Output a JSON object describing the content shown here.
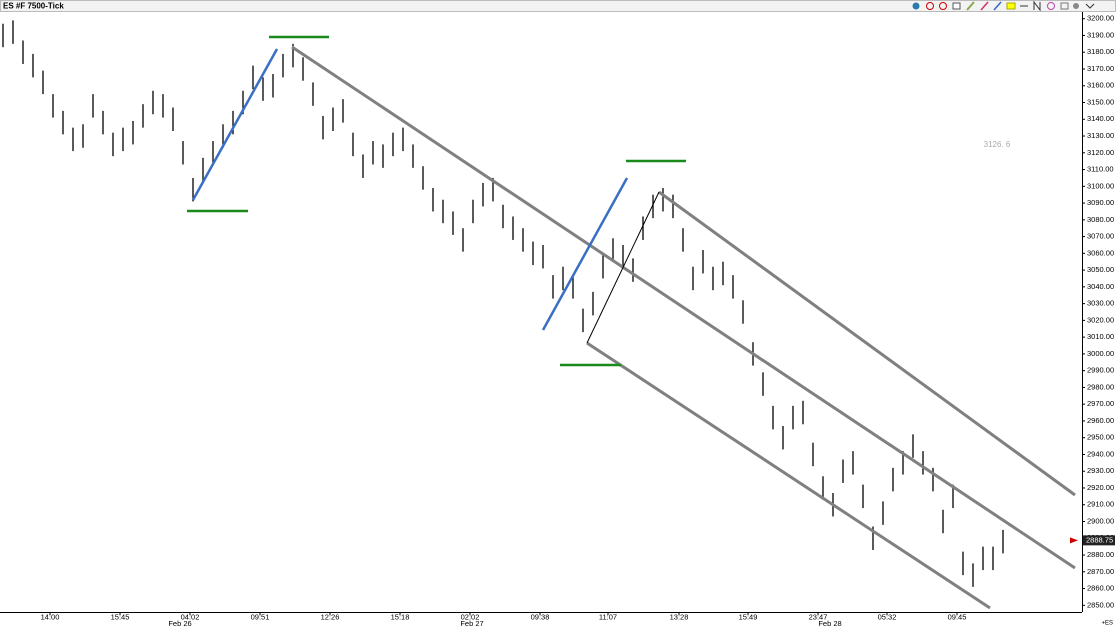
{
  "chart_data": {
    "type": "ohlc",
    "title": "ES #F 7500-Tick",
    "color": "#000000",
    "x": [
      3,
      13,
      23,
      33,
      43,
      53,
      63,
      73,
      83,
      93,
      103,
      113,
      123,
      133,
      143,
      153,
      163,
      173,
      183,
      193,
      203,
      213,
      223,
      233,
      243,
      253,
      263,
      273,
      283,
      293,
      303,
      313,
      323,
      333,
      343,
      353,
      363,
      373,
      383,
      393,
      403,
      413,
      423,
      433,
      443,
      453,
      463,
      473,
      483,
      493,
      503,
      513,
      523,
      533,
      543,
      553,
      563,
      573,
      583,
      593,
      603,
      613,
      623,
      633,
      643,
      653,
      663,
      673,
      683,
      693,
      703,
      713,
      723,
      733,
      743,
      753,
      763,
      773,
      783,
      793,
      803,
      813,
      823,
      833,
      843,
      853,
      863,
      873,
      883,
      893,
      903,
      913,
      923,
      933,
      943,
      953,
      963,
      973,
      983,
      993,
      1003
    ],
    "high": [
      3197,
      3199,
      3187,
      3179,
      3169,
      3155,
      3145,
      3135,
      3137,
      3155,
      3145,
      3132,
      3135,
      3139,
      3149,
      3157,
      3155,
      3147,
      3127,
      3105,
      3117,
      3127,
      3137,
      3145,
      3157,
      3172,
      3165,
      3167,
      3179,
      3185,
      3177,
      3162,
      3142,
      3147,
      3152,
      3132,
      3119,
      3127,
      3125,
      3132,
      3135,
      3125,
      3112,
      3099,
      3092,
      3085,
      3075,
      3092,
      3102,
      3105,
      3089,
      3082,
      3075,
      3067,
      3065,
      3047,
      3052,
      3047,
      3027,
      3037,
      3059,
      3069,
      3065,
      3057,
      3082,
      3095,
      3099,
      3095,
      3075,
      3052,
      3062,
      3052,
      3055,
      3047,
      3032,
      3007,
      2989,
      2969,
      2957,
      2969,
      2972,
      2947,
      2927,
      2917,
      2937,
      2942,
      2922,
      2897,
      2912,
      2932,
      2942,
      2952,
      2942,
      2932,
      2907,
      2922,
      2882,
      2875,
      2885,
      2885,
      2895
    ],
    "low": [
      3183,
      3185,
      3173,
      3165,
      3155,
      3141,
      3131,
      3121,
      3123,
      3141,
      3131,
      3118,
      3121,
      3125,
      3135,
      3143,
      3141,
      3133,
      3113,
      3091,
      3103,
      3113,
      3123,
      3131,
      3143,
      3158,
      3151,
      3153,
      3165,
      3171,
      3163,
      3148,
      3128,
      3133,
      3138,
      3118,
      3105,
      3113,
      3111,
      3118,
      3121,
      3111,
      3098,
      3085,
      3078,
      3071,
      3061,
      3078,
      3088,
      3091,
      3075,
      3068,
      3061,
      3053,
      3051,
      3033,
      3038,
      3033,
      3013,
      3023,
      3045,
      3055,
      3051,
      3043,
      3068,
      3081,
      3085,
      3081,
      3061,
      3038,
      3048,
      3038,
      3041,
      3033,
      3018,
      2993,
      2975,
      2955,
      2943,
      2955,
      2958,
      2933,
      2913,
      2903,
      2923,
      2928,
      2908,
      2883,
      2898,
      2918,
      2928,
      2938,
      2928,
      2918,
      2893,
      2908,
      2868,
      2861,
      2871,
      2871,
      2881
    ],
    "xlim": [
      0,
      1082
    ],
    "ylim": [
      2846,
      3204
    ],
    "xticks": [
      {
        "value": 50,
        "label": "14:00"
      },
      {
        "value": 120,
        "label": "15:45"
      },
      {
        "value": 190,
        "label": "04:02"
      },
      {
        "value": 260,
        "label": "09:51"
      },
      {
        "value": 330,
        "label": "12:26"
      },
      {
        "value": 400,
        "label": "15:18"
      },
      {
        "value": 470,
        "label": "02:02"
      },
      {
        "value": 540,
        "label": "09:38"
      },
      {
        "value": 608,
        "label": "11:07"
      },
      {
        "value": 679,
        "label": "13:28"
      },
      {
        "value": 748,
        "label": "15:49"
      },
      {
        "value": 818,
        "label": "23:47"
      },
      {
        "value": 887,
        "label": "05:32"
      },
      {
        "value": 957,
        "label": "09:45"
      }
    ],
    "date_labels": [
      {
        "value": 180,
        "label": "Feb 26"
      },
      {
        "value": 472,
        "label": "Feb 27"
      },
      {
        "value": 830,
        "label": "Feb 28"
      }
    ],
    "yticks": [
      {
        "value": 2850,
        "label": "2850.00"
      },
      {
        "value": 2860,
        "label": "2860.00"
      },
      {
        "value": 2870,
        "label": "2870.00"
      },
      {
        "value": 2880,
        "label": "2880.00"
      },
      {
        "value": 2890,
        "label": "2890.00"
      },
      {
        "value": 2900,
        "label": "2900.00"
      },
      {
        "value": 2910,
        "label": "2910.00"
      },
      {
        "value": 2920,
        "label": "2920.00"
      },
      {
        "value": 2930,
        "label": "2930.00"
      },
      {
        "value": 2940,
        "label": "2940.00"
      },
      {
        "value": 2950,
        "label": "2950.00"
      },
      {
        "value": 2960,
        "label": "2960.00"
      },
      {
        "value": 2970,
        "label": "2970.00"
      },
      {
        "value": 2980,
        "label": "2980.00"
      },
      {
        "value": 2990,
        "label": "2990.00"
      },
      {
        "value": 3000,
        "label": "3000.00"
      },
      {
        "value": 3010,
        "label": "3010.00"
      },
      {
        "value": 3020,
        "label": "3020.00"
      },
      {
        "value": 3030,
        "label": "3030.00"
      },
      {
        "value": 3040,
        "label": "3040.00"
      },
      {
        "value": 3050,
        "label": "3050.00"
      },
      {
        "value": 3060,
        "label": "3060.00"
      },
      {
        "value": 3070,
        "label": "3070.00"
      },
      {
        "value": 3080,
        "label": "3080.00"
      },
      {
        "value": 3090,
        "label": "3090.00"
      },
      {
        "value": 3100,
        "label": "3100.00"
      },
      {
        "value": 3110,
        "label": "3110.00"
      },
      {
        "value": 3120,
        "label": "3120.00"
      },
      {
        "value": 3130,
        "label": "3130.00"
      },
      {
        "value": 3140,
        "label": "3140.00"
      },
      {
        "value": 3150,
        "label": "3150.00"
      },
      {
        "value": 3160,
        "label": "3160.00"
      },
      {
        "value": 3170,
        "label": "3170.00"
      },
      {
        "value": 3180,
        "label": "3180.00"
      },
      {
        "value": 3190,
        "label": "3190.00"
      },
      {
        "value": 3200,
        "label": "3200.00"
      }
    ],
    "last_price": {
      "value": 2888.75,
      "label": "2888.75",
      "color": "#cc0000"
    },
    "annotation": "3126. 6",
    "symbol_tag": "+ES"
  }
}
